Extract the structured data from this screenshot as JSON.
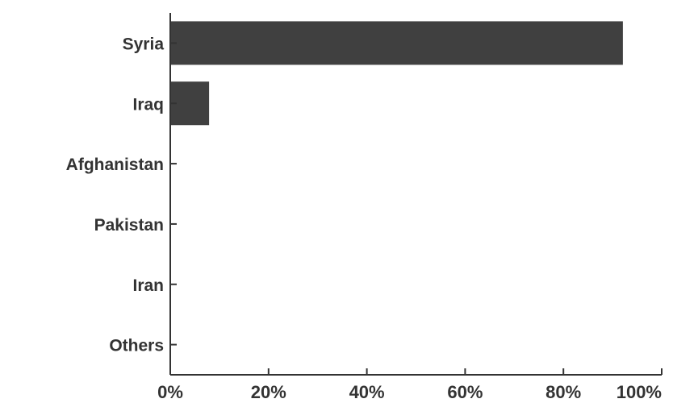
{
  "chart_data": {
    "type": "bar",
    "orientation": "horizontal",
    "title": "",
    "xlabel": "",
    "ylabel": "",
    "categories": [
      "Syria",
      "Iraq",
      "Afghanistan",
      "Pakistan",
      "Iran",
      "Others"
    ],
    "values": [
      92.1,
      7.9,
      0,
      0,
      0,
      0
    ],
    "xlim": [
      0,
      100
    ],
    "xticks": [
      0,
      20,
      40,
      60,
      80,
      100
    ],
    "xtick_labels": [
      "0%",
      "20%",
      "40%",
      "60%",
      "80%",
      "100%"
    ],
    "grid": false,
    "legend": "none",
    "bar_color": "#404040",
    "axis_color": "#333333"
  }
}
